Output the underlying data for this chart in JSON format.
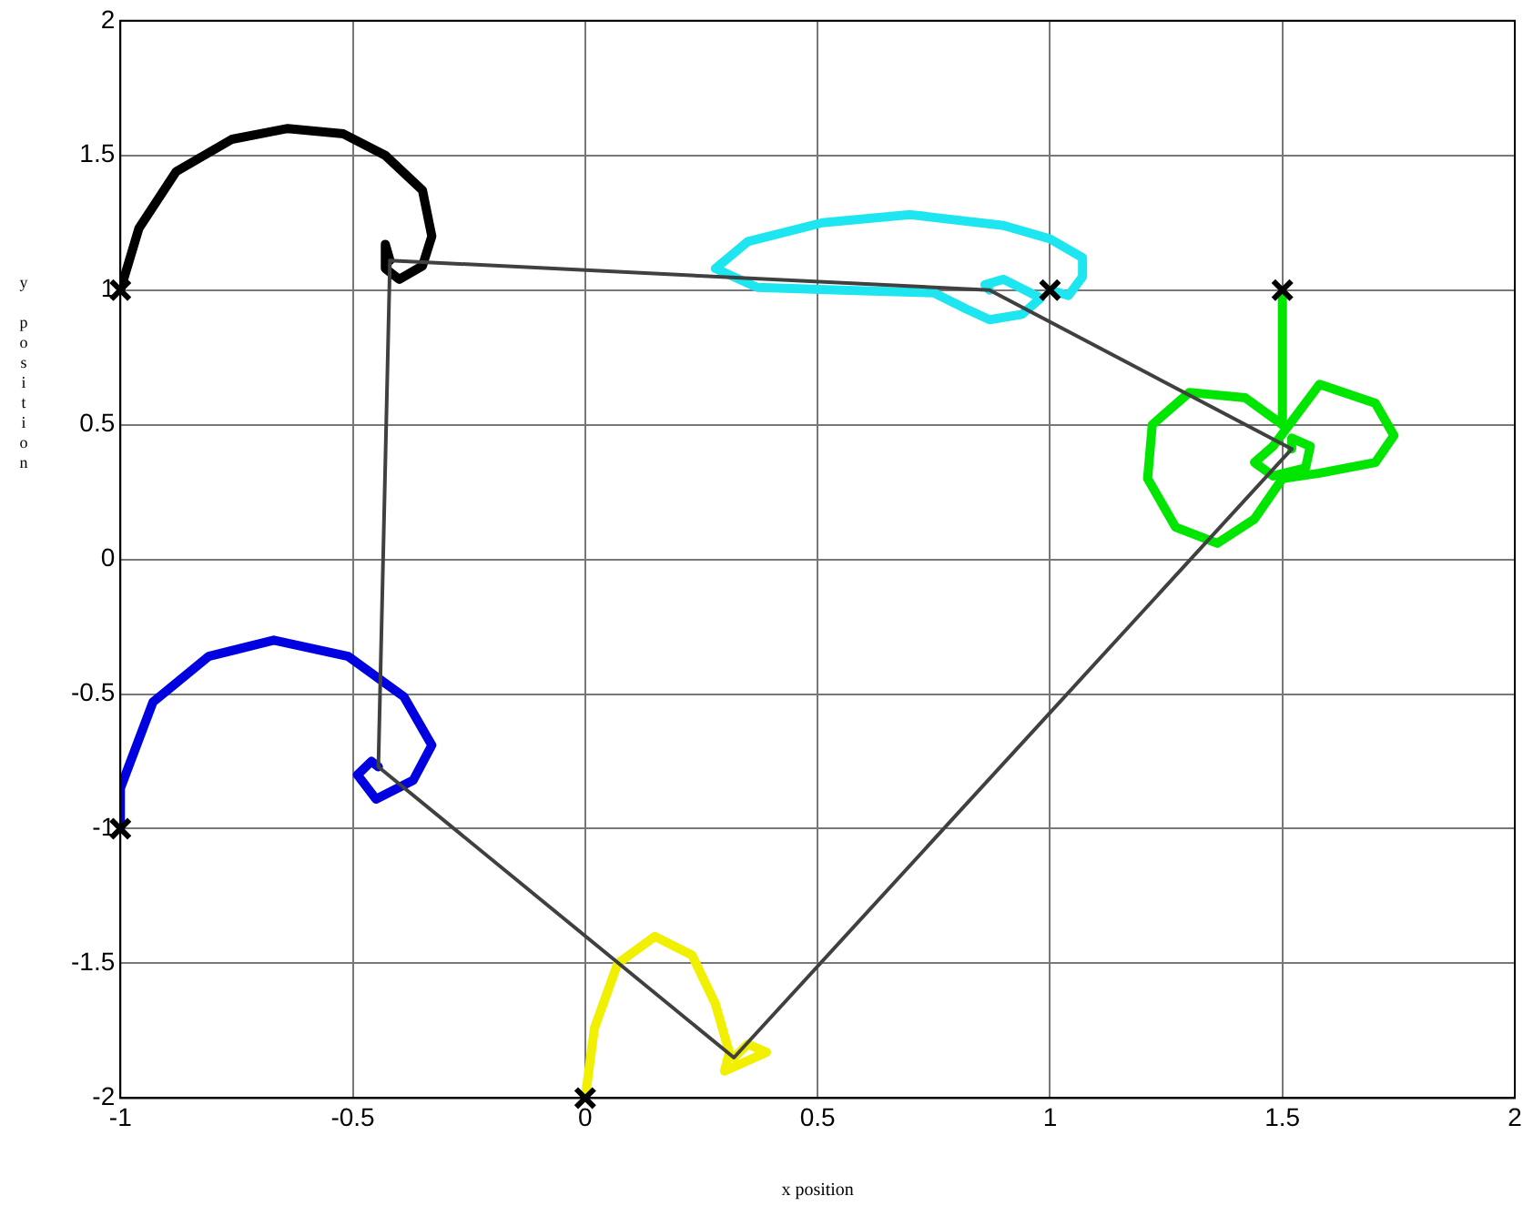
{
  "chart_data": {
    "type": "line",
    "xlabel": "x position",
    "ylabel": "y position",
    "xlim": [
      -1,
      2
    ],
    "ylim": [
      -2,
      2
    ],
    "xticks": [
      -1,
      -0.5,
      0,
      0.5,
      1,
      1.5,
      2
    ],
    "yticks": [
      -2,
      -1.5,
      -1,
      -0.5,
      0,
      0.5,
      1,
      1.5,
      2
    ],
    "grid": true,
    "marker": "none",
    "line_style": "solid",
    "series": [
      {
        "color": "#000000",
        "x": [
          -1,
          -0.96,
          -0.88,
          -0.76,
          -0.64,
          -0.52,
          -0.43,
          -0.35,
          -0.33,
          -0.35,
          -0.4,
          -0.43,
          -0.43,
          -0.42
        ],
        "values": [
          1,
          1.23,
          1.44,
          1.56,
          1.6,
          1.58,
          1.5,
          1.37,
          1.2,
          1.09,
          1.04,
          1.08,
          1.17,
          1.11
        ]
      },
      {
        "color": "#1ee6f0",
        "x": [
          1,
          1.04,
          1.07,
          1.07,
          1,
          0.9,
          0.7,
          0.51,
          0.35,
          0.28,
          0.37,
          0.55,
          0.75,
          0.82,
          0.87,
          0.94,
          0.98,
          0.9,
          0.86,
          0.87
        ],
        "values": [
          1,
          0.98,
          1.05,
          1.12,
          1.19,
          1.24,
          1.28,
          1.25,
          1.18,
          1.08,
          1.01,
          1,
          0.99,
          0.93,
          0.89,
          0.91,
          0.97,
          1.04,
          1.02,
          1
        ]
      },
      {
        "color": "#00e600",
        "x": [
          1.5,
          1.5,
          1.42,
          1.3,
          1.22,
          1.21,
          1.27,
          1.36,
          1.44,
          1.5,
          1.58,
          1.7,
          1.74,
          1.7,
          1.58,
          1.48,
          1.44,
          1.48,
          1.55,
          1.56,
          1.52,
          1.52
        ],
        "values": [
          1,
          0.5,
          0.6,
          0.62,
          0.5,
          0.3,
          0.12,
          0.06,
          0.15,
          0.3,
          0.32,
          0.36,
          0.46,
          0.58,
          0.65,
          0.42,
          0.36,
          0.31,
          0.34,
          0.42,
          0.45,
          0.41
        ]
      },
      {
        "color": "#f0f000",
        "x": [
          0,
          0.02,
          0.07,
          0.15,
          0.23,
          0.28,
          0.31,
          0.3,
          0.39,
          0.35,
          0.32
        ],
        "values": [
          -2,
          -1.74,
          -1.5,
          -1.4,
          -1.47,
          -1.65,
          -1.83,
          -1.9,
          -1.83,
          -1.8,
          -1.85
        ]
      },
      {
        "color": "#0000e0",
        "x": [
          -1,
          -1,
          -0.93,
          -0.81,
          -0.67,
          -0.51,
          -0.39,
          -0.33,
          -0.37,
          -0.45,
          -0.49,
          -0.46,
          -0.445
        ],
        "values": [
          -1,
          -0.85,
          -0.53,
          -0.36,
          -0.3,
          -0.36,
          -0.51,
          -0.69,
          -0.82,
          -0.89,
          -0.8,
          -0.75,
          -0.77
        ]
      },
      {
        "color": "#404040",
        "x": [
          -0.42,
          0.87,
          1.52
        ],
        "values": [
          1.11,
          1,
          0.41
        ]
      },
      {
        "color": "#404040",
        "x": [
          1.52,
          0.32,
          -0.445
        ],
        "values": [
          0.41,
          -1.85,
          -0.77
        ]
      },
      {
        "color": "#404040",
        "x": [
          -0.445,
          -0.42
        ],
        "values": [
          -0.77,
          1.11
        ]
      },
      {
        "type": "scatter",
        "marker": "cross",
        "color": "#000000",
        "x": [
          -1,
          1,
          1.5,
          0,
          -1
        ],
        "values": [
          1,
          1,
          1,
          -2,
          -1
        ]
      }
    ]
  }
}
